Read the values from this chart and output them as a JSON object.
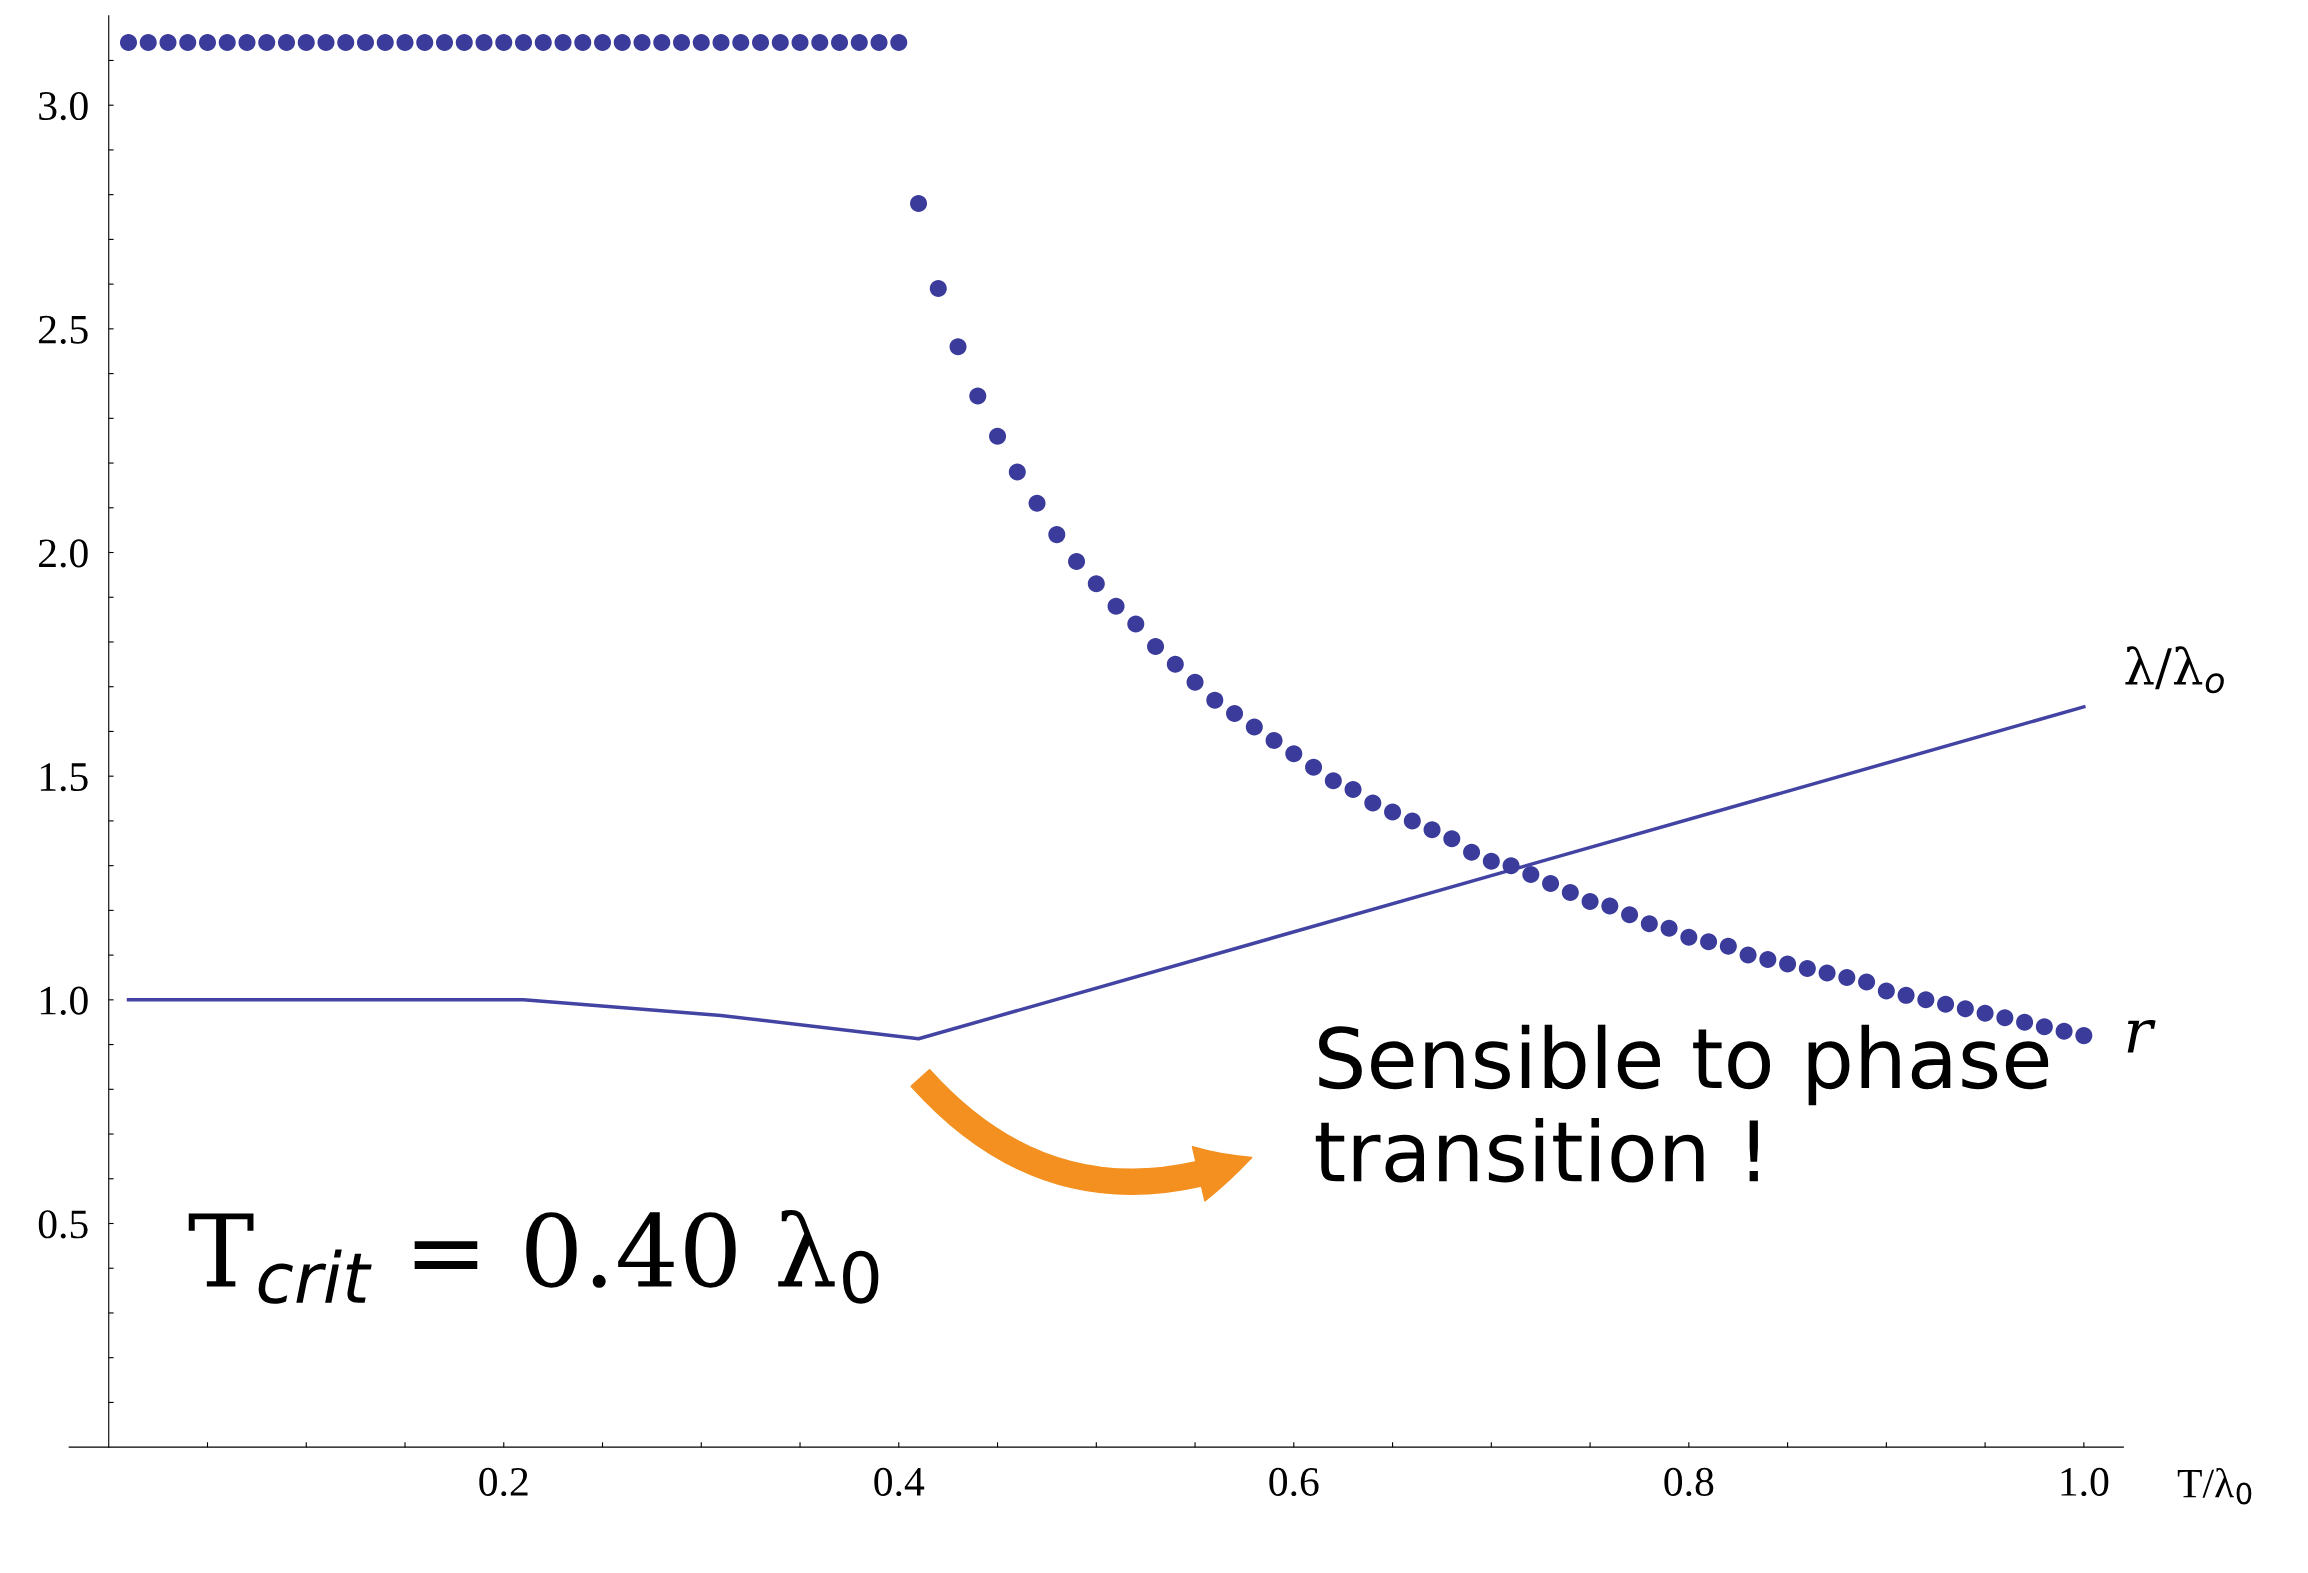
{
  "chart_data": {
    "type": "scatter",
    "xlabel": "T/λ$_{0}$",
    "xlim": [
      -0.02,
      1.02
    ],
    "ylim": [
      0,
      3.2
    ],
    "xticks": [
      {
        "value": 0.05,
        "label": null
      },
      {
        "value": 0.1,
        "label": null
      },
      {
        "value": 0.15,
        "label": null
      },
      {
        "value": 0.2,
        "label": "0.2"
      },
      {
        "value": 0.25,
        "label": null
      },
      {
        "value": 0.3,
        "label": null
      },
      {
        "value": 0.35,
        "label": null
      },
      {
        "value": 0.4,
        "label": "0.4"
      },
      {
        "value": 0.45,
        "label": null
      },
      {
        "value": 0.5,
        "label": null
      },
      {
        "value": 0.55,
        "label": null
      },
      {
        "value": 0.6,
        "label": "0.6"
      },
      {
        "value": 0.65,
        "label": null
      },
      {
        "value": 0.7,
        "label": null
      },
      {
        "value": 0.75,
        "label": null
      },
      {
        "value": 0.8,
        "label": "0.8"
      },
      {
        "value": 0.85,
        "label": null
      },
      {
        "value": 0.9,
        "label": null
      },
      {
        "value": 0.95,
        "label": null
      },
      {
        "value": 1.0,
        "label": "1.0"
      }
    ],
    "yticks": [
      {
        "value": 0.1,
        "label": null
      },
      {
        "value": 0.2,
        "label": null
      },
      {
        "value": 0.3,
        "label": null
      },
      {
        "value": 0.4,
        "label": null
      },
      {
        "value": 0.5,
        "label": "0.5"
      },
      {
        "value": 0.6,
        "label": null
      },
      {
        "value": 0.7,
        "label": null
      },
      {
        "value": 0.8,
        "label": null
      },
      {
        "value": 0.9,
        "label": null
      },
      {
        "value": 1.0,
        "label": "1.0"
      },
      {
        "value": 1.1,
        "label": null
      },
      {
        "value": 1.2,
        "label": null
      },
      {
        "value": 1.3,
        "label": null
      },
      {
        "value": 1.4,
        "label": null
      },
      {
        "value": 1.5,
        "label": "1.5"
      },
      {
        "value": 1.6,
        "label": null
      },
      {
        "value": 1.7,
        "label": null
      },
      {
        "value": 1.8,
        "label": null
      },
      {
        "value": 1.9,
        "label": null
      },
      {
        "value": 2.0,
        "label": "2.0"
      },
      {
        "value": 2.1,
        "label": null
      },
      {
        "value": 2.2,
        "label": null
      },
      {
        "value": 2.3,
        "label": null
      },
      {
        "value": 2.4,
        "label": null
      },
      {
        "value": 2.5,
        "label": "2.5"
      },
      {
        "value": 2.6,
        "label": null
      },
      {
        "value": 2.7,
        "label": null
      },
      {
        "value": 2.8,
        "label": null
      },
      {
        "value": 2.9,
        "label": null
      },
      {
        "value": 3.0,
        "label": "3.0"
      },
      {
        "value": 3.1,
        "label": null
      }
    ],
    "grid": false,
    "legend": false,
    "marker": "circle",
    "series": [
      {
        "name": "r",
        "color": "#3b3b9b",
        "x": [
          0.01,
          0.02,
          0.03,
          0.04,
          0.05,
          0.06,
          0.07,
          0.08,
          0.09,
          0.1,
          0.11,
          0.12,
          0.13,
          0.14,
          0.15,
          0.16,
          0.17,
          0.18,
          0.19,
          0.2,
          0.21,
          0.22,
          0.23,
          0.24,
          0.25,
          0.26,
          0.27,
          0.28,
          0.29,
          0.3,
          0.31,
          0.32,
          0.33,
          0.34,
          0.35,
          0.36,
          0.37,
          0.38,
          0.39,
          0.4,
          0.41,
          0.42,
          0.43,
          0.44,
          0.45,
          0.46,
          0.47,
          0.48,
          0.49,
          0.5,
          0.51,
          0.52,
          0.53,
          0.54,
          0.55,
          0.56,
          0.57,
          0.58,
          0.59,
          0.6,
          0.61,
          0.62,
          0.63,
          0.64,
          0.65,
          0.66,
          0.67,
          0.68,
          0.69,
          0.7,
          0.71,
          0.72,
          0.73,
          0.74,
          0.75,
          0.76,
          0.77,
          0.78,
          0.79,
          0.8,
          0.81,
          0.82,
          0.83,
          0.84,
          0.85,
          0.86,
          0.87,
          0.88,
          0.89,
          0.9,
          0.91,
          0.92,
          0.93,
          0.94,
          0.95,
          0.96,
          0.97,
          0.98,
          0.99,
          1.0
        ],
        "values": [
          3.14,
          3.14,
          3.14,
          3.14,
          3.14,
          3.14,
          3.14,
          3.14,
          3.14,
          3.14,
          3.14,
          3.14,
          3.14,
          3.14,
          3.14,
          3.14,
          3.14,
          3.14,
          3.14,
          3.14,
          3.14,
          3.14,
          3.14,
          3.14,
          3.14,
          3.14,
          3.14,
          3.14,
          3.14,
          3.14,
          3.14,
          3.14,
          3.14,
          3.14,
          3.14,
          3.14,
          3.14,
          3.14,
          3.14,
          3.14,
          2.78,
          2.59,
          2.46,
          2.35,
          2.26,
          2.18,
          2.11,
          2.04,
          1.98,
          1.93,
          1.88,
          1.84,
          1.79,
          1.75,
          1.71,
          1.67,
          1.64,
          1.61,
          1.58,
          1.55,
          1.52,
          1.49,
          1.47,
          1.44,
          1.42,
          1.4,
          1.38,
          1.36,
          1.33,
          1.31,
          1.3,
          1.28,
          1.26,
          1.24,
          1.22,
          1.21,
          1.19,
          1.17,
          1.16,
          1.14,
          1.13,
          1.12,
          1.1,
          1.09,
          1.08,
          1.07,
          1.06,
          1.05,
          1.04,
          1.02,
          1.01,
          1.0,
          0.99,
          0.98,
          0.97,
          0.96,
          0.95,
          0.94,
          0.93,
          0.92
        ]
      },
      {
        "name": "λ/λ$_{o}$",
        "type": "line",
        "color": "#4343a3",
        "marker": "none",
        "line_style": "solid",
        "x": [
          0.01,
          0.21,
          0.31,
          0.41,
          1.0
        ],
        "values": [
          1.0,
          1.0,
          0.965,
          0.913,
          1.655
        ]
      }
    ],
    "annotations": [
      {
        "text": "T$_{crit}$ = 0.40 λ$_{0}$"
      },
      {
        "text": "Sensible to phase transition !"
      }
    ]
  }
}
